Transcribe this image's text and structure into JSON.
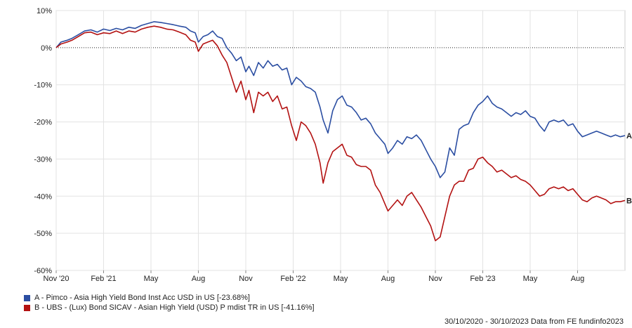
{
  "chart_data": {
    "type": "line",
    "xlabel": "",
    "ylabel": "",
    "ylim": [
      -60,
      10
    ],
    "y_ticks": [
      10,
      0,
      -10,
      -20,
      -30,
      -40,
      -50,
      -60
    ],
    "y_tick_labels": [
      "10%",
      "0%",
      "-10%",
      "-20%",
      "-30%",
      "-40%",
      "-50%",
      "-60%"
    ],
    "x_tick_labels": [
      "Nov '20",
      "Feb '21",
      "May",
      "Aug",
      "Nov",
      "Feb '22",
      "May",
      "Aug",
      "Nov",
      "Feb '23",
      "May",
      "Aug"
    ],
    "x_tick_months": [
      0,
      3,
      6,
      9,
      12,
      15,
      18,
      21,
      24,
      27,
      30,
      33
    ],
    "x_range_months": [
      0,
      36
    ],
    "zero_line": "dotted",
    "grid": true,
    "series": [
      {
        "name": "A - Pimco - Asia High Yield Bond Inst Acc USD in US [-23.68%]",
        "end_label": "A",
        "color": "#2b4ea2",
        "x": [
          0,
          0.3,
          0.7,
          1.0,
          1.4,
          1.8,
          2.2,
          2.6,
          3.0,
          3.4,
          3.8,
          4.2,
          4.6,
          5.0,
          5.4,
          5.8,
          6.2,
          6.6,
          7.0,
          7.4,
          7.8,
          8.2,
          8.5,
          8.8,
          9.0,
          9.3,
          9.6,
          9.9,
          10.2,
          10.5,
          10.8,
          11.1,
          11.4,
          11.7,
          12.0,
          12.2,
          12.5,
          12.8,
          13.1,
          13.4,
          13.7,
          14.0,
          14.3,
          14.6,
          14.9,
          15.2,
          15.5,
          15.8,
          16.1,
          16.4,
          16.7,
          16.9,
          17.2,
          17.5,
          17.8,
          18.1,
          18.4,
          18.7,
          19.0,
          19.3,
          19.6,
          19.9,
          20.2,
          20.5,
          20.8,
          21.0,
          21.3,
          21.6,
          21.9,
          22.2,
          22.5,
          22.8,
          23.1,
          23.4,
          23.7,
          24.0,
          24.3,
          24.6,
          24.9,
          25.2,
          25.5,
          25.8,
          26.1,
          26.4,
          26.7,
          27.0,
          27.3,
          27.6,
          27.9,
          28.2,
          28.5,
          28.8,
          29.1,
          29.4,
          29.7,
          30.0,
          30.3,
          30.6,
          30.9,
          31.2,
          31.5,
          31.8,
          32.1,
          32.4,
          32.7,
          33.0,
          33.3,
          33.6,
          33.9,
          34.2,
          34.5,
          34.8,
          35.1,
          35.4,
          35.7,
          36.0
        ],
        "values": [
          0,
          1.5,
          2.0,
          2.5,
          3.5,
          4.5,
          4.8,
          4.2,
          5.0,
          4.6,
          5.2,
          4.8,
          5.5,
          5.2,
          6.0,
          6.5,
          7.0,
          6.8,
          6.5,
          6.2,
          5.8,
          5.5,
          4.5,
          4.0,
          1.5,
          3.0,
          3.5,
          4.5,
          3.0,
          2.5,
          0.0,
          -1.5,
          -3.5,
          -2.5,
          -6.5,
          -5.0,
          -7.5,
          -4.0,
          -5.5,
          -3.5,
          -5.0,
          -4.5,
          -6.0,
          -5.5,
          -10.0,
          -8.0,
          -9.0,
          -10.5,
          -11.0,
          -12.0,
          -16.0,
          -19.5,
          -23.0,
          -17.0,
          -14.0,
          -13.0,
          -15.5,
          -16.0,
          -17.5,
          -19.5,
          -19.0,
          -20.5,
          -23.0,
          -24.5,
          -26.0,
          -28.5,
          -27.0,
          -25.0,
          -26.0,
          -24.0,
          -24.5,
          -23.5,
          -25.0,
          -27.5,
          -30.0,
          -32.0,
          -35.0,
          -33.5,
          -27.0,
          -29.0,
          -22.0,
          -21.0,
          -20.5,
          -17.5,
          -15.5,
          -14.5,
          -13.0,
          -15.0,
          -16.0,
          -16.5,
          -17.5,
          -18.5,
          -17.5,
          -18.0,
          -17.0,
          -18.5,
          -19.0,
          -21.0,
          -22.5,
          -20.0,
          -19.5,
          -20.0,
          -19.5,
          -21.0,
          -20.5,
          -22.5,
          -24.0,
          -23.5,
          -23.0,
          -22.5,
          -23.0,
          -23.5,
          -24.0,
          -23.5,
          -24.0,
          -23.68
        ]
      },
      {
        "name": "B - UBS - (Lux) Bond SICAV - Asian High Yield (USD) P mdist TR in US [-41.16%]",
        "end_label": "B",
        "color": "#b31212",
        "x": [
          0,
          0.3,
          0.7,
          1.0,
          1.4,
          1.8,
          2.2,
          2.6,
          3.0,
          3.4,
          3.8,
          4.2,
          4.6,
          5.0,
          5.4,
          5.8,
          6.2,
          6.6,
          7.0,
          7.4,
          7.8,
          8.2,
          8.5,
          8.8,
          9.0,
          9.3,
          9.6,
          9.9,
          10.2,
          10.5,
          10.8,
          11.1,
          11.4,
          11.7,
          12.0,
          12.2,
          12.5,
          12.8,
          13.1,
          13.4,
          13.7,
          14.0,
          14.3,
          14.6,
          14.9,
          15.2,
          15.5,
          15.8,
          16.1,
          16.4,
          16.7,
          16.9,
          17.2,
          17.5,
          17.8,
          18.1,
          18.4,
          18.7,
          19.0,
          19.3,
          19.6,
          19.9,
          20.2,
          20.5,
          20.8,
          21.0,
          21.3,
          21.6,
          21.9,
          22.2,
          22.5,
          22.8,
          23.1,
          23.4,
          23.7,
          24.0,
          24.3,
          24.6,
          24.9,
          25.2,
          25.5,
          25.8,
          26.1,
          26.4,
          26.7,
          27.0,
          27.3,
          27.6,
          27.9,
          28.2,
          28.5,
          28.8,
          29.1,
          29.4,
          29.7,
          30.0,
          30.3,
          30.6,
          30.9,
          31.2,
          31.5,
          31.8,
          32.1,
          32.4,
          32.7,
          33.0,
          33.3,
          33.6,
          33.9,
          34.2,
          34.5,
          34.8,
          35.1,
          35.4,
          35.7,
          36.0
        ],
        "values": [
          0,
          1.0,
          1.5,
          2.0,
          3.0,
          4.0,
          4.2,
          3.5,
          4.0,
          3.8,
          4.5,
          3.8,
          4.5,
          4.2,
          5.0,
          5.5,
          5.8,
          5.5,
          5.0,
          4.8,
          4.2,
          3.5,
          2.0,
          1.5,
          -1.0,
          1.0,
          1.5,
          2.0,
          0.5,
          -2.0,
          -4.0,
          -8.0,
          -12.0,
          -9.0,
          -14.0,
          -11.5,
          -17.5,
          -12.0,
          -13.0,
          -12.0,
          -14.5,
          -13.0,
          -16.5,
          -16.0,
          -21.0,
          -25.0,
          -20.0,
          -21.0,
          -23.0,
          -26.0,
          -31.0,
          -36.5,
          -31.0,
          -28.0,
          -27.0,
          -26.0,
          -29.0,
          -29.5,
          -31.5,
          -32.0,
          -32.0,
          -33.0,
          -37.0,
          -39.0,
          -42.0,
          -44.0,
          -42.5,
          -41.0,
          -42.5,
          -40.0,
          -39.0,
          -41.0,
          -43.0,
          -45.5,
          -48.0,
          -52.0,
          -51.0,
          -45.5,
          -40.0,
          -37.0,
          -36.0,
          -36.0,
          -33.0,
          -32.5,
          -30.0,
          -29.5,
          -31.0,
          -32.0,
          -33.5,
          -33.0,
          -34.0,
          -35.0,
          -34.5,
          -35.5,
          -36.0,
          -37.0,
          -38.5,
          -40.0,
          -39.5,
          -38.0,
          -37.5,
          -38.0,
          -37.5,
          -38.5,
          -38.0,
          -39.5,
          -41.0,
          -41.5,
          -40.5,
          -40.0,
          -40.5,
          -41.0,
          -42.0,
          -41.5,
          -41.5,
          -41.16
        ]
      }
    ]
  },
  "legend": {
    "a_label": "A - Pimco - Asia High Yield Bond Inst Acc USD in US [-23.68%]",
    "b_label": "B - UBS - (Lux) Bond SICAV - Asian High Yield (USD) P mdist TR in US [-41.16%]"
  },
  "footer": "30/10/2020 - 30/10/2023 Data from FE fundinfo2023"
}
